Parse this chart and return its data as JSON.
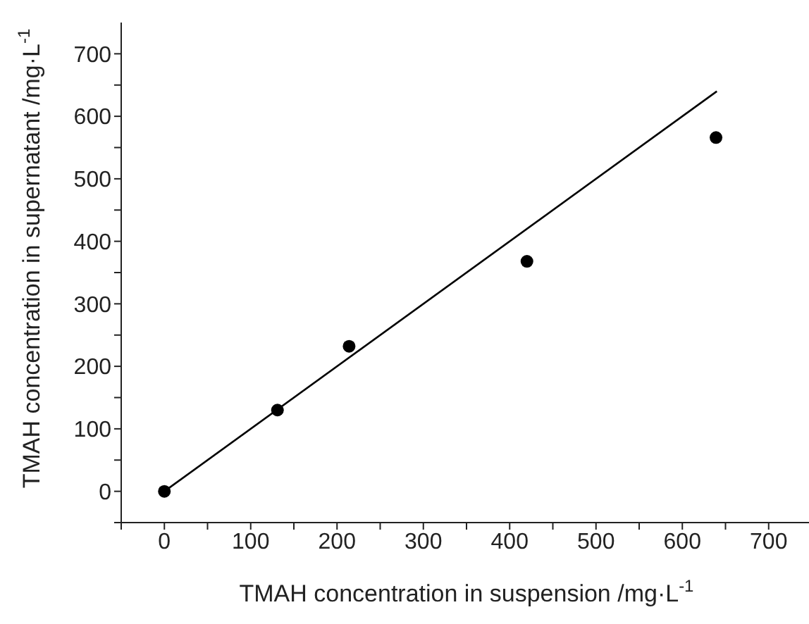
{
  "chart_data": {
    "type": "scatter",
    "xlabel": "TMAH concentration in suspension /mg·L$^{-1}$",
    "ylabel": "TMAH concentration in supernatant /mg·L$^{-1}$",
    "marker": "circle",
    "series": [
      {
        "color": "#000000",
        "x": [
          0,
          131,
          214,
          420,
          639
        ],
        "values": [
          0,
          130,
          232,
          368,
          566
        ]
      },
      {
        "type": "line",
        "color": "#000000",
        "x": [
          0,
          640
        ],
        "values": [
          0,
          640
        ],
        "marker": "none",
        "line_style": "solid"
      }
    ],
    "xlim": [
      -50,
      750
    ],
    "ylim": [
      -50,
      750
    ],
    "xticks": [
      {
        "value": -50,
        "label": null
      },
      0,
      {
        "value": 50,
        "label": null
      },
      100,
      {
        "value": 150,
        "label": null
      },
      200,
      {
        "value": 250,
        "label": null
      },
      300,
      {
        "value": 350,
        "label": null
      },
      400,
      {
        "value": 450,
        "label": null
      },
      500,
      {
        "value": 550,
        "label": null
      },
      600,
      {
        "value": 650,
        "label": null
      },
      700
    ],
    "yticks": [
      {
        "value": -50,
        "label": null
      },
      0,
      {
        "value": 50,
        "label": null
      },
      100,
      {
        "value": 150,
        "label": null
      },
      200,
      {
        "value": 250,
        "label": null
      },
      300,
      {
        "value": 350,
        "label": null
      },
      400,
      {
        "value": 450,
        "label": null
      },
      500,
      {
        "value": 550,
        "label": null
      },
      600,
      {
        "value": 650,
        "label": null
      },
      700
    ]
  }
}
